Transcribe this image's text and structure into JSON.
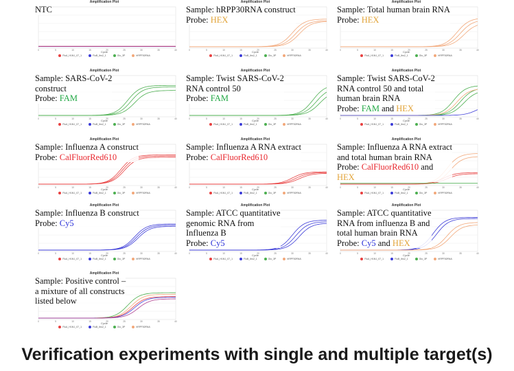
{
  "footer_title": "Verification experiments with single and multiple target(s)",
  "colors": {
    "FAM": "#22a845",
    "HEX": "#e2a43a",
    "CalFluorRed610": "#e8262d",
    "Cy5": "#2a2fd8",
    "hex_curve": "#f2a87a",
    "fam_curve": "#4caf50",
    "red_curve": "#e84040",
    "cy5_curve": "#3c3cd8"
  },
  "panel_common": {
    "title": "Amplification Plot",
    "xlabel": "Cycle",
    "legend": [
      {
        "name": "FluA_H1N1_07_1",
        "color": "#e84040"
      },
      {
        "name": "FluB_Ibs2_1",
        "color": "#3c3cd8"
      },
      {
        "name": "Glo_3P",
        "color": "#4caf50"
      },
      {
        "name": "hRPP30RNA",
        "color": "#f2a87a"
      }
    ]
  },
  "chart_data": [
    {
      "type": "line",
      "caption": [
        [
          {
            "t": "NTC"
          }
        ]
      ],
      "series": [
        {
          "color": "#3c3cd8",
          "flat": true
        },
        {
          "color": "#e84040",
          "flat": true
        },
        {
          "color": "#b04090",
          "flat": true
        }
      ]
    },
    {
      "type": "line",
      "caption": [
        [
          {
            "t": "Sample: hRPP30RNA construct"
          }
        ],
        [
          {
            "t": "Probe: "
          },
          {
            "t": "HEX",
            "c": "HEX"
          }
        ]
      ],
      "series": [
        {
          "color": "#f2a87a",
          "mid": 30,
          "top": 0.72
        },
        {
          "color": "#f2a87a",
          "mid": 31,
          "top": 0.68
        },
        {
          "color": "#f2a87a",
          "mid": 32,
          "top": 0.66
        }
      ]
    },
    {
      "type": "line",
      "caption": [
        [
          {
            "t": "Sample: Total human brain RNA"
          }
        ],
        [
          {
            "t": "Probe: "
          },
          {
            "t": "HEX",
            "c": "HEX"
          }
        ]
      ],
      "series": [
        {
          "color": "#f2a87a",
          "mid": 34,
          "top": 0.75
        },
        {
          "color": "#f2a87a",
          "mid": 35,
          "top": 0.7
        },
        {
          "color": "#f2a87a",
          "mid": 36,
          "top": 0.62
        }
      ]
    },
    {
      "type": "line",
      "caption": [
        [
          {
            "t": "Sample: SARS-CoV-2"
          }
        ],
        [
          {
            "t": "construct"
          }
        ],
        [
          {
            "t": "Probe: "
          },
          {
            "t": "FAM",
            "c": "FAM"
          }
        ]
      ],
      "series": [
        {
          "color": "#4caf50",
          "mid": 26,
          "top": 0.78
        },
        {
          "color": "#4caf50",
          "mid": 27,
          "top": 0.74
        },
        {
          "color": "#4caf50",
          "mid": 28,
          "top": 0.65
        }
      ]
    },
    {
      "type": "line",
      "caption": [
        [
          {
            "t": "Sample: Twist SARS-CoV-2"
          }
        ],
        [
          {
            "t": "RNA control 50"
          }
        ],
        [
          {
            "t": "Probe: "
          },
          {
            "t": "FAM",
            "c": "FAM"
          }
        ]
      ],
      "series": [
        {
          "color": "#4caf50",
          "mid": 36,
          "top": 0.8
        },
        {
          "color": "#4caf50",
          "mid": 37,
          "top": 0.72
        },
        {
          "color": "#4caf50",
          "mid": 38,
          "top": 0.64
        }
      ]
    },
    {
      "type": "line",
      "caption": [
        [
          {
            "t": "Sample: Twist SARS-CoV-2"
          }
        ],
        [
          {
            "t": "RNA control 50 and total"
          }
        ],
        [
          {
            "t": "human brain RNA"
          }
        ],
        [
          {
            "t": "Probe: "
          },
          {
            "t": "FAM",
            "c": "FAM"
          },
          {
            "t": " and "
          },
          {
            "t": "HEX",
            "c": "HEX"
          }
        ]
      ],
      "series": [
        {
          "color": "#4caf50",
          "mid": 33,
          "top": 0.78
        },
        {
          "color": "#4caf50",
          "mid": 35,
          "top": 0.72
        },
        {
          "color": "#4caf50",
          "mid": 36,
          "top": 0.65
        },
        {
          "color": "#f2a87a",
          "mid": 34,
          "top": 0.7
        },
        {
          "color": "#3c3cd8",
          "mid": 40,
          "top": 0.3
        }
      ]
    },
    {
      "type": "line",
      "caption": [
        [
          {
            "t": "Sample: Influenza A construct"
          }
        ],
        [
          {
            "t": "Probe: "
          },
          {
            "t": "CalFluorRed610",
            "c": "CalFluorRed610"
          }
        ]
      ],
      "series": [
        {
          "color": "#e84040",
          "mid": 24,
          "top": 0.76
        },
        {
          "color": "#e84040",
          "mid": 24.5,
          "top": 0.73
        },
        {
          "color": "#e84040",
          "mid": 25,
          "top": 0.7
        }
      ]
    },
    {
      "type": "line",
      "caption": [
        [
          {
            "t": "Sample: Influenza A RNA extract"
          }
        ],
        [
          {
            "t": "Probe: "
          },
          {
            "t": "CalFluorRed610",
            "c": "CalFluorRed610"
          }
        ]
      ],
      "series": [
        {
          "color": "#e84040",
          "mid": 30,
          "top": 0.32
        },
        {
          "color": "#e84040",
          "mid": 31,
          "top": 0.3
        },
        {
          "color": "#e84040",
          "mid": 32,
          "top": 0.28
        }
      ]
    },
    {
      "type": "line",
      "caption": [
        [
          {
            "t": "Sample: Influenza A RNA extract"
          }
        ],
        [
          {
            "t": "and total human brain RNA"
          }
        ],
        [
          {
            "t": "Probe: "
          },
          {
            "t": "CalFluorRed610",
            "c": "CalFluorRed610"
          },
          {
            "t": " and"
          }
        ],
        [
          {
            "t": "HEX",
            "c": "HEX"
          }
        ]
      ],
      "series": [
        {
          "color": "#f2a87a",
          "mid": 31,
          "top": 0.8
        },
        {
          "color": "#f2a87a",
          "mid": 32,
          "top": 0.72
        },
        {
          "color": "#e84040",
          "mid": 30,
          "top": 0.3
        },
        {
          "color": "#e84040",
          "mid": 31,
          "top": 0.27
        },
        {
          "color": "#4caf50",
          "flat": true
        }
      ]
    },
    {
      "type": "line",
      "caption": [
        [
          {
            "t": "Sample: Influenza B construct"
          }
        ],
        [
          {
            "t": "Probe: "
          },
          {
            "t": "Cy5",
            "c": "Cy5"
          }
        ]
      ],
      "series": [
        {
          "color": "#3c3cd8",
          "mid": 28,
          "top": 0.68
        },
        {
          "color": "#3c3cd8",
          "mid": 28.5,
          "top": 0.65
        },
        {
          "color": "#3c3cd8",
          "mid": 29,
          "top": 0.62
        }
      ]
    },
    {
      "type": "line",
      "caption": [
        [
          {
            "t": "Sample: ATCC quantitative"
          }
        ],
        [
          {
            "t": "genomic RNA from"
          }
        ],
        [
          {
            "t": "Influenza B"
          }
        ],
        [
          {
            "t": "Probe: "
          },
          {
            "t": "Cy5",
            "c": "Cy5"
          }
        ]
      ],
      "series": [
        {
          "color": "#3c3cd8",
          "mid": 30,
          "top": 0.78
        },
        {
          "color": "#3c3cd8",
          "mid": 31,
          "top": 0.74
        },
        {
          "color": "#3c3cd8",
          "mid": 32,
          "top": 0.7
        }
      ]
    },
    {
      "type": "line",
      "caption": [
        [
          {
            "t": "Sample: ATCC quantitative"
          }
        ],
        [
          {
            "t": "RNA from influenza B and"
          }
        ],
        [
          {
            "t": "total human brain RNA"
          }
        ],
        [
          {
            "t": "Probe: "
          },
          {
            "t": "Cy5",
            "c": "Cy5"
          },
          {
            "t": " and "
          },
          {
            "t": "HEX",
            "c": "HEX"
          }
        ]
      ],
      "series": [
        {
          "color": "#3c3cd8",
          "mid": 27,
          "top": 0.85
        },
        {
          "color": "#3c3cd8",
          "mid": 28,
          "top": 0.82
        },
        {
          "color": "#f2a87a",
          "mid": 31,
          "top": 0.72
        },
        {
          "color": "#f2a87a",
          "mid": 32,
          "top": 0.66
        }
      ]
    },
    {
      "type": "line",
      "caption": [
        [
          {
            "t": "Sample: Positive control –"
          }
        ],
        [
          {
            "t": "a mixture of all constructs"
          }
        ],
        [
          {
            "t": "listed below"
          }
        ]
      ],
      "series": [
        {
          "color": "#4caf50",
          "mid": 26,
          "top": 0.66
        },
        {
          "color": "#f2a87a",
          "mid": 27,
          "top": 0.62
        },
        {
          "color": "#e84040",
          "mid": 27.5,
          "top": 0.56
        },
        {
          "color": "#3c3cd8",
          "mid": 28,
          "top": 0.54
        },
        {
          "color": "#b04090",
          "mid": 29,
          "top": 0.5
        }
      ]
    }
  ]
}
